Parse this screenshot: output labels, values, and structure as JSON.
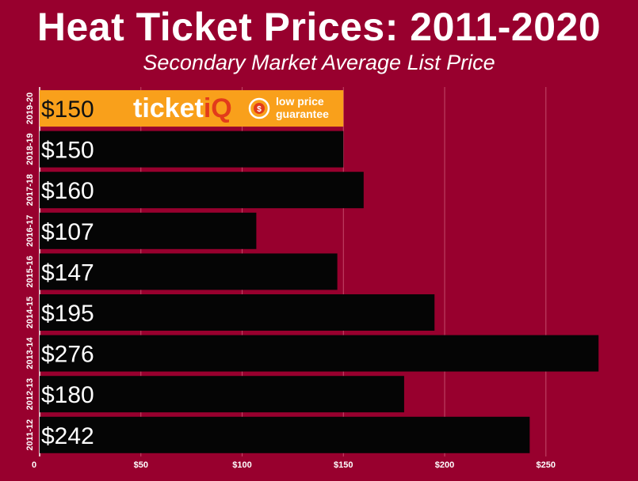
{
  "title": "Heat Ticket Prices: 2011-2020",
  "subtitle": "Secondary Market Average List Price",
  "colors": {
    "background": "#98002E",
    "bar": "#050505",
    "highlight_bar": "#F9A01B",
    "grid": "#C44A6A"
  },
  "logo": {
    "brand_main": "ticket",
    "brand_accent": "iQ",
    "tagline_line1": "low price",
    "tagline_line2": "guarantee",
    "icon": "dollar-badge-icon"
  },
  "chart_data": {
    "type": "bar",
    "orientation": "horizontal",
    "categories": [
      "2019-20",
      "2018-19",
      "2017-18",
      "2016-17",
      "2015-16",
      "2014-15",
      "2013-14",
      "2012-13",
      "2011-12"
    ],
    "values": [
      150,
      150,
      160,
      107,
      147,
      195,
      276,
      180,
      242
    ],
    "value_labels": [
      "$150",
      "$150",
      "$160",
      "$107",
      "$147",
      "$195",
      "$276",
      "$180",
      "$242"
    ],
    "highlight_index": 0,
    "xlim": [
      0,
      290
    ],
    "xticks": [
      0,
      50,
      100,
      150,
      200,
      250
    ],
    "xtick_labels": [
      "0",
      "$50",
      "$100",
      "$150",
      "$200",
      "$250"
    ],
    "grid": true,
    "legend": "none"
  }
}
